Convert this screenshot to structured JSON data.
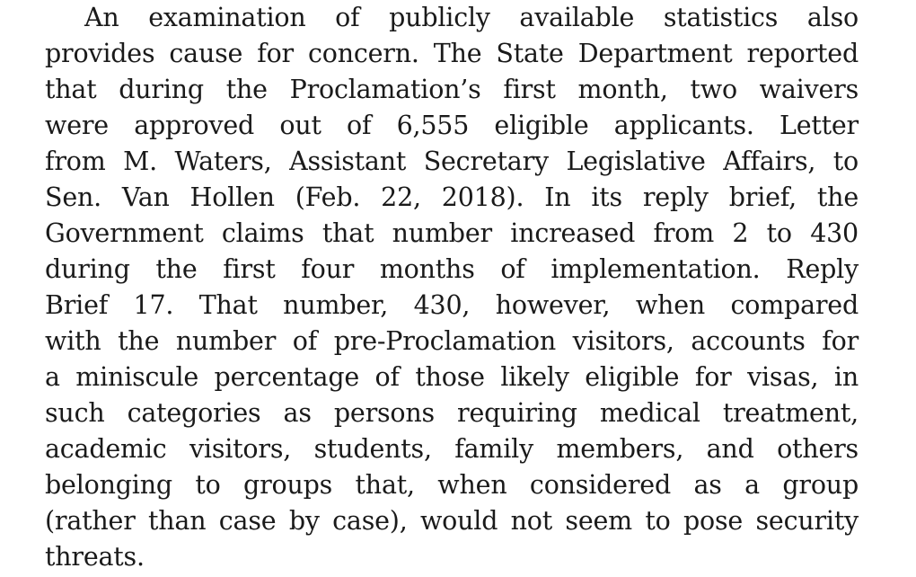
{
  "document": {
    "paragraph": {
      "lines": [
        "An examination of publicly available statistics also",
        "provides cause for concern.  The State Department reported",
        "that during the Proclamation’s first month, two waivers",
        "were approved out of 6,555 eligible applicants.  Letter",
        "from M. Waters, Assistant Secretary Legislative Affairs, to",
        "Sen. Van Hollen (Feb. 22, 2018).  In its reply brief, the",
        "Government claims that number increased from 2 to 430",
        "during the first four months of implementation.  Reply",
        "Brief 17.  That number, 430, however, when compared",
        "with the number of pre-Proclamation visitors, accounts for",
        "a miniscule percentage of those likely eligible for visas, in",
        "such categories as persons requiring medical treatment,",
        "academic visitors, students, family members, and others",
        "belonging to groups that, when considered as a group",
        "(rather than case by case), would not seem to pose security",
        "threats."
      ]
    }
  }
}
